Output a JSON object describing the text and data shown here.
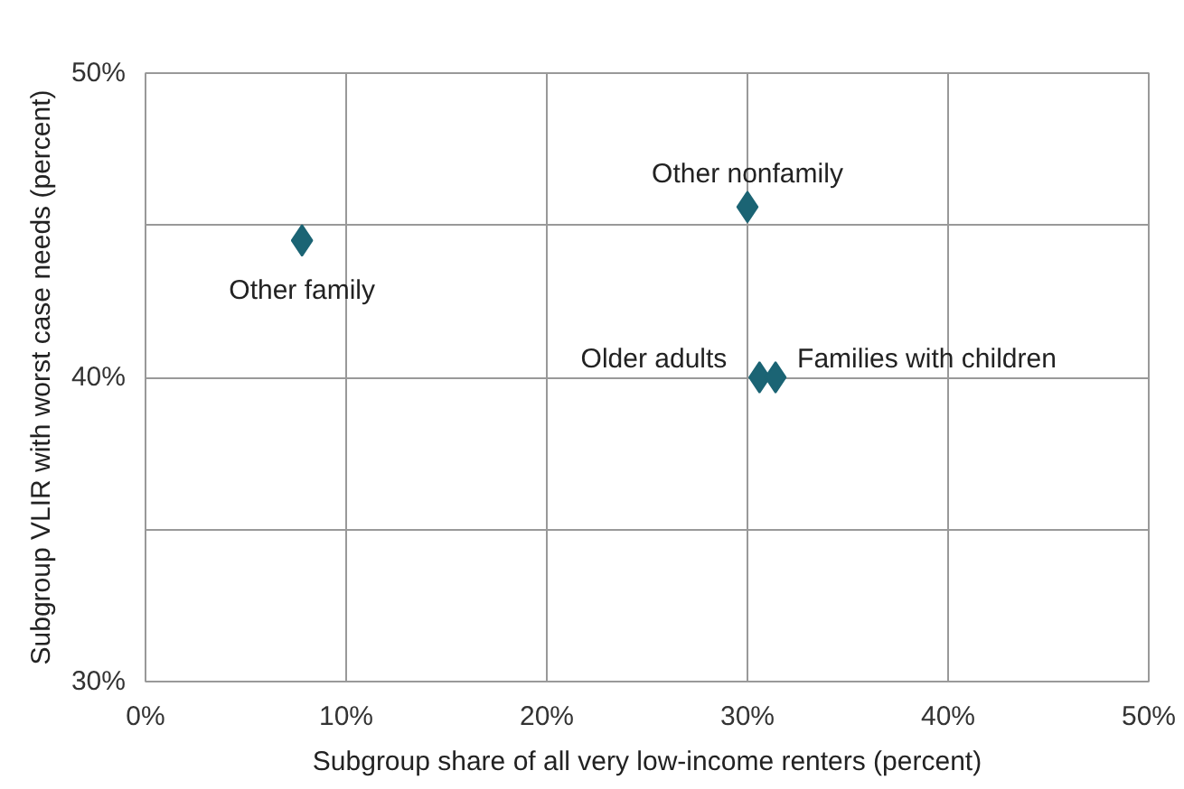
{
  "chart_data": {
    "type": "scatter",
    "xlabel": "Subgroup share of all very low-income renters (percent)",
    "ylabel": "Subgroup VLIR with worst case needs (percent)",
    "x": [
      7.8,
      30.0,
      30.6,
      31.4
    ],
    "series": [
      {
        "color": "#1b6474",
        "values": [
          44.5,
          45.6,
          40.0,
          40.0
        ]
      }
    ],
    "annotations": [
      {
        "text": "Other family",
        "x": 7.8,
        "y": 44.5
      },
      {
        "text": "Other nonfamily",
        "x": 30.0,
        "y": 45.6
      },
      {
        "text": "Older adults",
        "x": 30.6,
        "y": 40.0
      },
      {
        "text": "Families with children",
        "x": 31.4,
        "y": 40.0
      }
    ],
    "xlim": [
      0,
      50
    ],
    "ylim": [
      30,
      50
    ],
    "xticks": [
      {
        "value": 0,
        "label": "0%"
      },
      {
        "value": 10,
        "label": "10%"
      },
      {
        "value": 20,
        "label": "20%"
      },
      {
        "value": 30,
        "label": "30%"
      },
      {
        "value": 40,
        "label": "40%"
      },
      {
        "value": 50,
        "label": "50%"
      }
    ],
    "yticks": [
      {
        "value": 30,
        "label": "30%"
      },
      {
        "value": 35,
        "label": null
      },
      {
        "value": 40,
        "label": "40%"
      },
      {
        "value": 45,
        "label": null
      },
      {
        "value": 50,
        "label": "50%"
      }
    ],
    "grid": true,
    "marker": "diamond"
  }
}
